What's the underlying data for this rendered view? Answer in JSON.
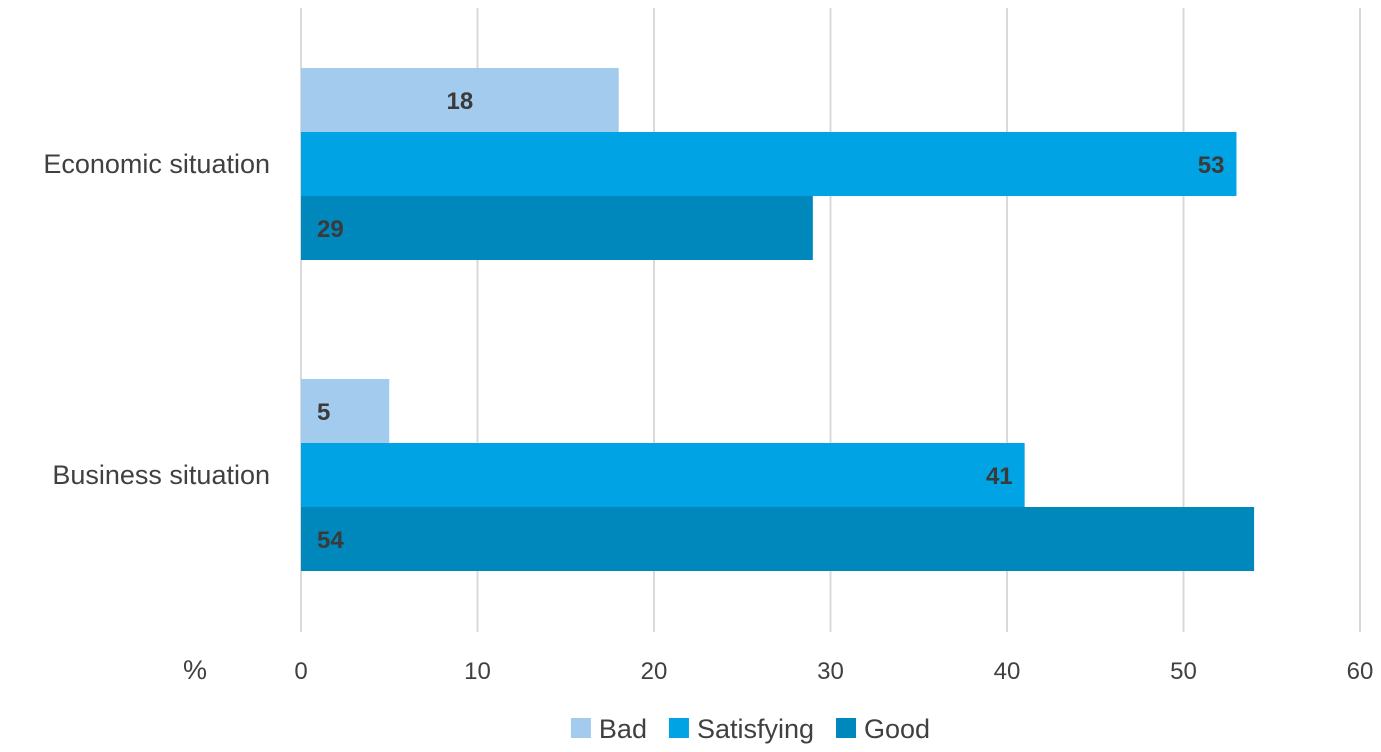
{
  "chart_data": {
    "type": "bar",
    "orientation": "horizontal",
    "unit_label": "%",
    "categories": [
      "Economic situation",
      "Business situation"
    ],
    "series": [
      {
        "name": "Bad",
        "color": "#a3cbee",
        "values": [
          18,
          5
        ]
      },
      {
        "name": "Satisfying",
        "color": "#00a4e4",
        "values": [
          53,
          41
        ]
      },
      {
        "name": "Good",
        "color": "#0088bd",
        "values": [
          29,
          54
        ]
      }
    ],
    "xlim": [
      0,
      60
    ],
    "xticks": [
      0,
      10,
      20,
      30,
      40,
      50,
      60
    ],
    "grid": "vertical",
    "legend_position": "bottom"
  }
}
